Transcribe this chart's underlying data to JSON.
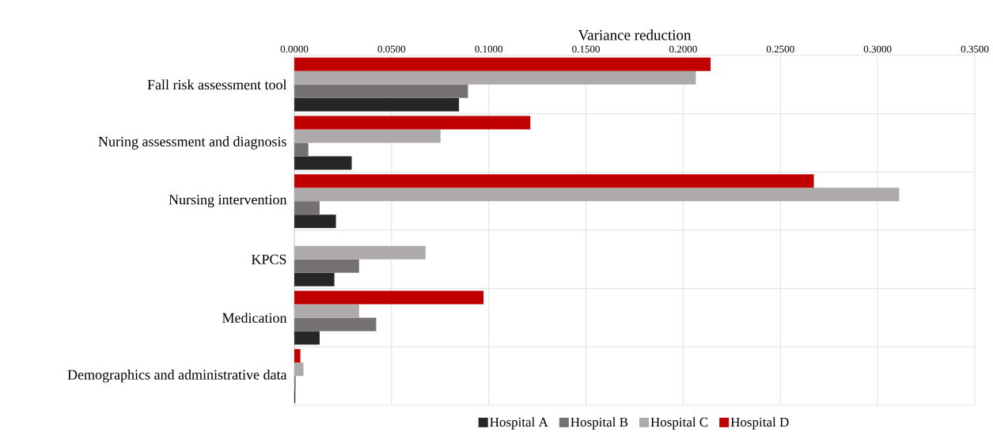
{
  "chart_data": {
    "type": "bar",
    "orientation": "horizontal",
    "xlabel": "Variance reduction",
    "categories": [
      "Fall risk assessment tool",
      "Nuring assessment and diagnosis",
      "Nursing intervention",
      "KPCS",
      "Medication",
      "Demographics and administrative data"
    ],
    "series": [
      {
        "name": "Hospital A",
        "color": "#262626",
        "values": [
          0.0847,
          0.0295,
          0.0214,
          0.0206,
          0.013,
          0.0005
        ]
      },
      {
        "name": "Hospital B",
        "color": "#767171",
        "values": [
          0.0893,
          0.0072,
          0.013,
          0.0333,
          0.0421,
          0.0007
        ]
      },
      {
        "name": "Hospital C",
        "color": "#aeaaaa",
        "values": [
          0.2065,
          0.0752,
          0.3111,
          0.0675,
          0.0333,
          0.0047
        ]
      },
      {
        "name": "Hospital D",
        "color": "#c00000",
        "values": [
          0.2141,
          0.1214,
          0.2672,
          null,
          0.0973,
          0.0031
        ]
      }
    ],
    "xlim": [
      0,
      0.35
    ],
    "xticks": [
      {
        "value": 0,
        "label": "0.0000"
      },
      {
        "value": 0.05,
        "label": "0.0500"
      },
      {
        "value": 0.1,
        "label": "0.1000"
      },
      {
        "value": 0.15,
        "label": "0.1500"
      },
      {
        "value": 0.2,
        "label": "0.2000"
      },
      {
        "value": 0.25,
        "label": "0.2500"
      },
      {
        "value": 0.3,
        "label": "0.3000"
      },
      {
        "value": 0.35,
        "label": "0.3500"
      }
    ],
    "grid": true,
    "legend": "bottom"
  }
}
